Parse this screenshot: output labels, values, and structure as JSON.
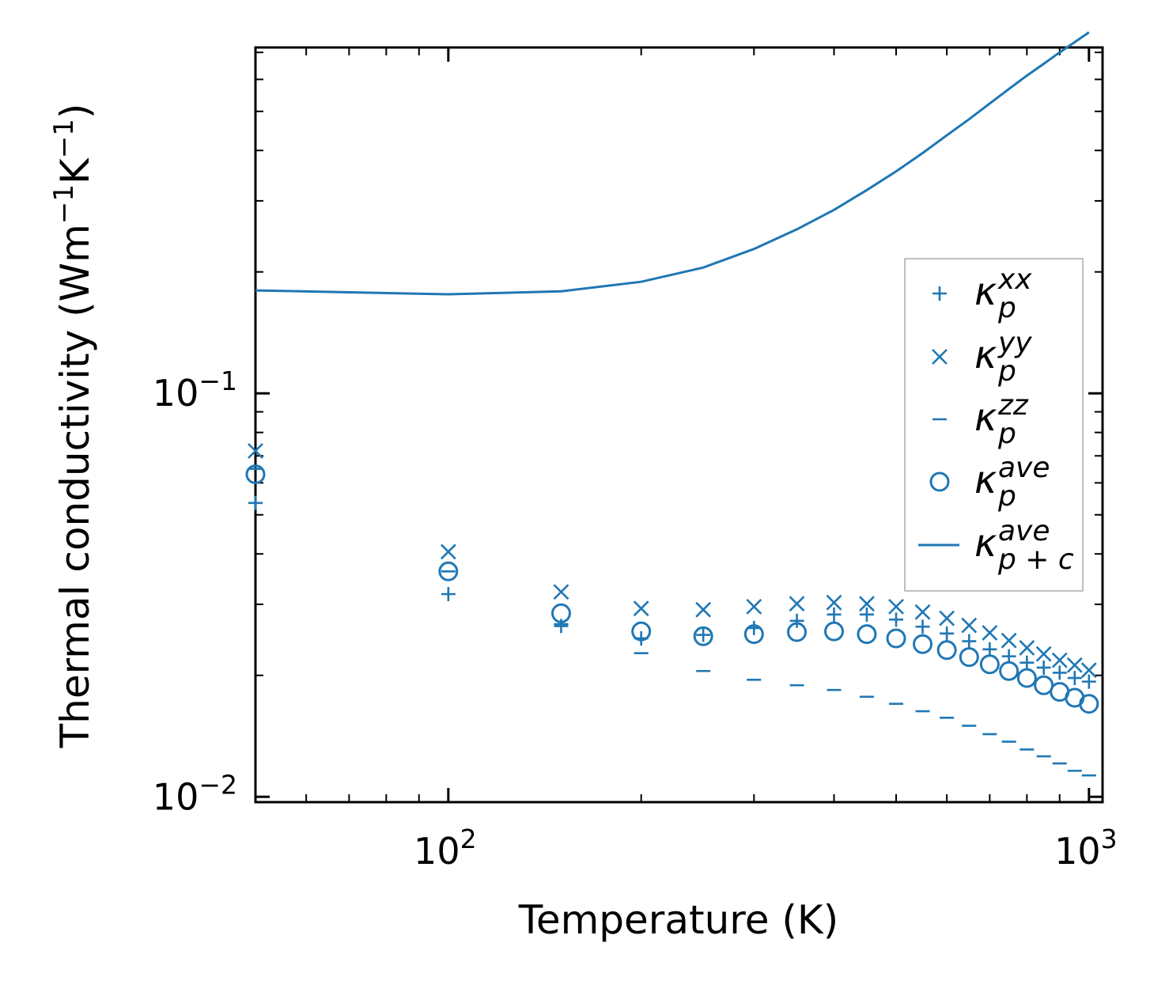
{
  "chart_data": {
    "type": "scatter",
    "xscale": "log",
    "yscale": "log",
    "xlim": [
      50,
      1050
    ],
    "ylim": [
      0.0097,
      0.72
    ],
    "xlabel": "Temperature (K)",
    "ylabel": {
      "main": "Thermal conductivity (Wm",
      "exp1": "−1",
      "mid": "K",
      "exp2": "−1",
      "close": ")"
    },
    "xticks": [
      {
        "value": 100,
        "base": "10",
        "exp": "2"
      },
      {
        "value": 1000,
        "base": "10",
        "exp": "3"
      }
    ],
    "yticks": [
      {
        "value": 0.1,
        "base": "10",
        "exp": "−1"
      },
      {
        "value": 0.01,
        "base": "10",
        "exp": "−2"
      }
    ],
    "legend_position": "center-right",
    "color": "#1f77b4",
    "x": [
      50,
      100,
      150,
      200,
      250,
      300,
      350,
      400,
      450,
      500,
      550,
      600,
      650,
      700,
      750,
      800,
      850,
      900,
      950,
      1000
    ],
    "series": [
      {
        "name": "κ_p^xx",
        "symbol": "κ",
        "sub": "p",
        "sup": "xx",
        "marker": "plus",
        "values": [
          0.0535,
          0.0318,
          0.0265,
          0.0247,
          0.0252,
          0.0262,
          0.0273,
          0.0283,
          0.0283,
          0.0275,
          0.0264,
          0.0254,
          0.0243,
          0.0232,
          0.0223,
          0.0215,
          0.0209,
          0.0203,
          0.0197,
          0.0193
        ]
      },
      {
        "name": "κ_p^yy",
        "symbol": "κ",
        "sub": "p",
        "sup": "yy",
        "marker": "x",
        "values": [
          0.072,
          0.0405,
          0.0322,
          0.0293,
          0.0291,
          0.0296,
          0.0301,
          0.0303,
          0.0301,
          0.0296,
          0.0287,
          0.0277,
          0.0266,
          0.0255,
          0.0244,
          0.0234,
          0.0226,
          0.0218,
          0.0212,
          0.0206
        ]
      },
      {
        "name": "κ_p^zz",
        "symbol": "κ",
        "sub": "p",
        "sup": "zz",
        "marker": "hline",
        "values": [
          0.065,
          0.0362,
          0.0268,
          0.0227,
          0.0205,
          0.0195,
          0.0189,
          0.0184,
          0.0177,
          0.017,
          0.0163,
          0.0157,
          0.015,
          0.0143,
          0.0137,
          0.0131,
          0.0126,
          0.0121,
          0.0116,
          0.0113
        ]
      },
      {
        "name": "κ_p^ave",
        "symbol": "κ",
        "sub": "p",
        "sup": "ave",
        "marker": "circle",
        "values": [
          0.063,
          0.0362,
          0.0285,
          0.0257,
          0.025,
          0.0253,
          0.0256,
          0.0257,
          0.0253,
          0.0247,
          0.0239,
          0.0231,
          0.0222,
          0.0213,
          0.0205,
          0.0197,
          0.0189,
          0.0182,
          0.0176,
          0.017
        ]
      },
      {
        "name": "κ_p+c^ave",
        "symbol": "κ",
        "sub": "p + c",
        "sup": "ave",
        "marker": "line",
        "values": [
          0.18,
          0.176,
          0.179,
          0.189,
          0.205,
          0.228,
          0.255,
          0.285,
          0.319,
          0.355,
          0.394,
          0.436,
          0.478,
          0.523,
          0.568,
          0.613,
          0.656,
          0.7,
          0.742,
          0.785
        ]
      }
    ]
  }
}
